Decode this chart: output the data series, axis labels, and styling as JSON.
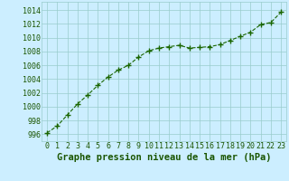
{
  "x": [
    0,
    1,
    2,
    3,
    4,
    5,
    6,
    7,
    8,
    9,
    10,
    11,
    12,
    13,
    14,
    15,
    16,
    17,
    18,
    19,
    20,
    21,
    22,
    23
  ],
  "y": [
    996.2,
    997.2,
    998.8,
    1000.4,
    1001.7,
    1003.1,
    1004.3,
    1005.3,
    1006.0,
    1007.2,
    1008.1,
    1008.5,
    1008.7,
    1008.9,
    1008.5,
    1008.6,
    1008.7,
    1009.0,
    1009.6,
    1010.2,
    1010.8,
    1011.9,
    1012.2,
    1013.7
  ],
  "line_color": "#1a6600",
  "marker": "+",
  "marker_size": 4,
  "marker_lw": 1.0,
  "line_width": 0.8,
  "bg_color": "#cceeff",
  "grid_color": "#99cccc",
  "xlabel": "Graphe pression niveau de la mer (hPa)",
  "xlabel_fontsize": 7.5,
  "tick_fontsize": 6,
  "ylabel_ticks": [
    996,
    998,
    1000,
    1002,
    1004,
    1006,
    1008,
    1010,
    1012,
    1014
  ],
  "xlim": [
    -0.5,
    23.5
  ],
  "ylim": [
    995.0,
    1015.2
  ],
  "xticks": [
    0,
    1,
    2,
    3,
    4,
    5,
    6,
    7,
    8,
    9,
    10,
    11,
    12,
    13,
    14,
    15,
    16,
    17,
    18,
    19,
    20,
    21,
    22,
    23
  ],
  "text_color": "#1a5500"
}
